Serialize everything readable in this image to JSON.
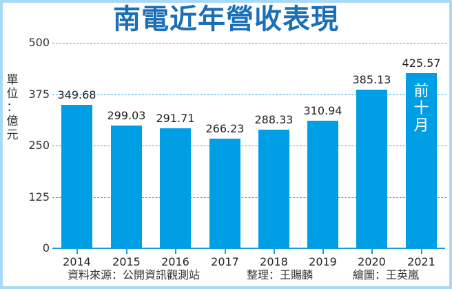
{
  "chart_data": {
    "type": "bar",
    "title": "南電近年營收表現",
    "ylabel": "單位：億元",
    "xlabel": "",
    "categories": [
      "2014",
      "2015",
      "2016",
      "2017",
      "2018",
      "2019",
      "2020",
      "2021"
    ],
    "values": [
      349.68,
      299.03,
      291.71,
      266.23,
      288.33,
      310.94,
      385.13,
      425.57
    ],
    "value_labels": [
      "349.68",
      "299.03",
      "291.71",
      "266.23",
      "288.33",
      "310.94",
      "385.13",
      "425.57"
    ],
    "ylim": [
      0,
      500
    ],
    "yticks": [
      "500",
      "375",
      "250",
      "125",
      "0"
    ],
    "grid": true,
    "annotations": [
      {
        "category": "2021",
        "text": "前十月"
      }
    ],
    "bar_color": "#009ee5"
  },
  "unit_chars": [
    "單",
    "位",
    "：",
    "億",
    "元"
  ],
  "annotation_chars": [
    "前",
    "十",
    "月"
  ],
  "footer": {
    "source": "資料來源：公開資訊觀測站",
    "compiled": "整理：王賜麟",
    "drawn": "繪圖：王英嵐"
  },
  "colors": {
    "title": "#1b6fb8",
    "bar": "#009ee5",
    "grid": "#2aa4df",
    "border": "#a8daf5"
  }
}
